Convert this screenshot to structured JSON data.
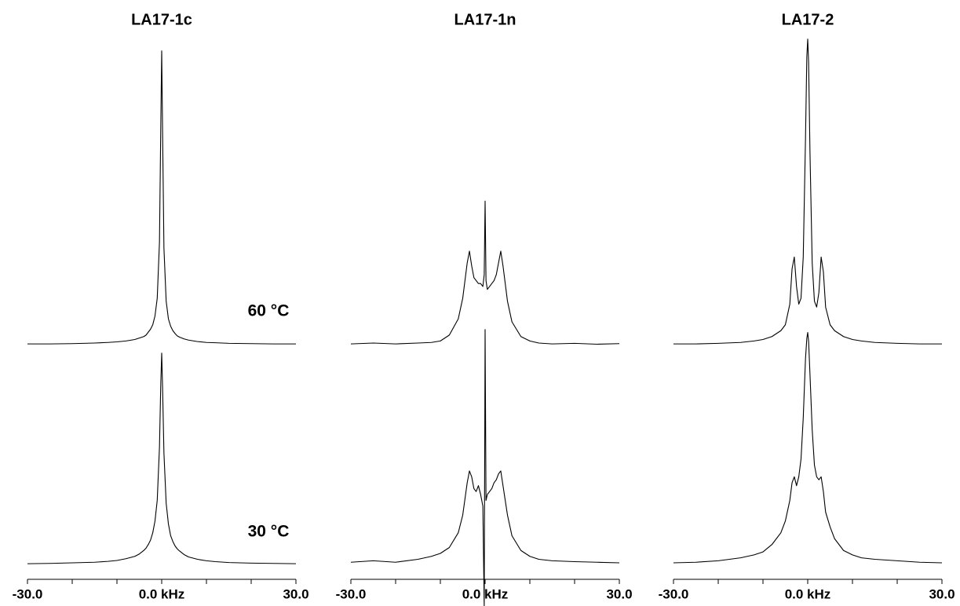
{
  "chart_data": [
    {
      "type": "line",
      "title": "LA17-1c",
      "x": [
        -30,
        -25,
        -20,
        -15,
        -12,
        -10,
        -8,
        -6,
        -5,
        -4,
        -3.5,
        -3,
        -2.5,
        -2,
        -1.5,
        -1,
        -0.5,
        -0.2,
        0,
        0.2,
        0.5,
        1,
        1.5,
        2,
        2.5,
        3,
        3.5,
        4,
        5,
        6,
        8,
        10,
        12,
        15,
        20,
        25,
        30
      ],
      "series": [
        {
          "color": "#000000",
          "values": [
            0.5,
            0.5,
            0.6,
            0.8,
            1,
            1.2,
            1.5,
            2,
            2.5,
            3,
            3.5,
            4.5,
            5.5,
            7,
            10,
            16,
            35,
            75,
            100,
            72,
            33,
            15,
            9,
            6.5,
            5,
            4,
            3.2,
            2.8,
            2.2,
            1.8,
            1.3,
            1,
            0.9,
            0.7,
            0.6,
            0.5,
            0.5
          ]
        },
        {
          "color": "#000000",
          "values": [
            0.5,
            0.6,
            0.8,
            1,
            1.3,
            1.6,
            2.2,
            3,
            3.8,
            5,
            5.8,
            7,
            8.5,
            11,
            15,
            22,
            40,
            62,
            72,
            60,
            38,
            21,
            14,
            10,
            8,
            6.5,
            5.5,
            4.8,
            3.6,
            2.8,
            2,
            1.5,
            1.2,
            0.9,
            0.7,
            0.6,
            0.5
          ]
        }
      ],
      "annotations": [
        "60 °C",
        "30 °C"
      ],
      "xlim": [
        -30,
        30
      ],
      "xticks": [
        {
          "value": -30,
          "label": "-30.0"
        },
        {
          "value": 0,
          "label": "0.0 kHz"
        },
        {
          "value": 30,
          "label": "30.0"
        }
      ],
      "xminor": [
        -20,
        -10,
        10,
        20
      ],
      "ylim": [
        0,
        105
      ]
    },
    {
      "type": "line",
      "title": "LA17-1n",
      "x": [
        -30,
        -25,
        -20,
        -15,
        -12,
        -10,
        -8,
        -6,
        -5,
        -4,
        -3.5,
        -3,
        -2.5,
        -2,
        -1.5,
        -1,
        -0.5,
        -0.2,
        0,
        0.2,
        0.5,
        1,
        1.5,
        2,
        2.5,
        3,
        3.5,
        4,
        5,
        6,
        8,
        10,
        12,
        15,
        20,
        25,
        30
      ],
      "series": [
        {
          "color": "#000000",
          "values": [
            0.5,
            0.8,
            0.5,
            0.8,
            1,
            1.5,
            3.5,
            9,
            16,
            28,
            32,
            27,
            23,
            22,
            21,
            21,
            20,
            24,
            49,
            22,
            19,
            20,
            21,
            22,
            24,
            28,
            32,
            27,
            15,
            8,
            3,
            1.5,
            0.8,
            0.5,
            0.7,
            0.4,
            0.6
          ]
        },
        {
          "color": "#000000",
          "values": [
            1,
            1.5,
            1,
            2,
            3,
            4,
            6,
            11,
            17,
            28,
            32,
            30,
            26,
            25,
            27,
            24,
            20,
            -14,
            80,
            22,
            24,
            25,
            26,
            28,
            29,
            31,
            32,
            27,
            17,
            10,
            5,
            3,
            2,
            1.5,
            1.2,
            1,
            0.8
          ]
        }
      ],
      "xlim": [
        -30,
        30
      ],
      "xticks": [
        {
          "value": -30,
          "label": "-30.0"
        },
        {
          "value": 0,
          "label": "0.0 kHz"
        },
        {
          "value": 30,
          "label": "30.0"
        }
      ],
      "xminor": [
        -20,
        -10,
        10,
        20
      ],
      "ylim": [
        0,
        105
      ]
    },
    {
      "type": "line",
      "title": "LA17-2",
      "x": [
        -30,
        -25,
        -20,
        -15,
        -12,
        -10,
        -8,
        -6,
        -5,
        -4,
        -3.5,
        -3,
        -2.5,
        -2,
        -1.5,
        -1,
        -0.5,
        -0.2,
        0,
        0.2,
        0.5,
        1,
        1.5,
        2,
        2.5,
        3,
        3.5,
        4,
        5,
        6,
        8,
        10,
        12,
        15,
        20,
        25,
        30
      ],
      "series": [
        {
          "color": "#000000",
          "values": [
            0.5,
            0.5,
            0.7,
            1,
            1.5,
            2,
            3,
            5,
            7,
            14,
            26,
            30,
            20,
            14,
            16,
            30,
            70,
            98,
            104,
            96,
            66,
            28,
            15,
            13,
            18,
            30,
            25,
            13,
            7,
            5,
            3,
            2,
            1.5,
            1,
            0.7,
            0.5,
            0.5
          ]
        },
        {
          "color": "#000000",
          "values": [
            0.8,
            1,
            1.5,
            2.5,
            3.5,
            4.5,
            7,
            11,
            15,
            22,
            28,
            30,
            27,
            30,
            36,
            50,
            70,
            77,
            79,
            76,
            65,
            46,
            34,
            30,
            29,
            30,
            25,
            18,
            13,
            9,
            5,
            3.5,
            2.5,
            2,
            1.5,
            1,
            0.8
          ]
        }
      ],
      "xlim": [
        -30,
        30
      ],
      "xticks": [
        {
          "value": -30,
          "label": "-30.0"
        },
        {
          "value": 0,
          "label": "0.0 kHz"
        },
        {
          "value": 30,
          "label": "30.0"
        }
      ],
      "xminor": [
        -20,
        -10,
        10,
        20
      ],
      "ylim": [
        0,
        105
      ]
    }
  ]
}
